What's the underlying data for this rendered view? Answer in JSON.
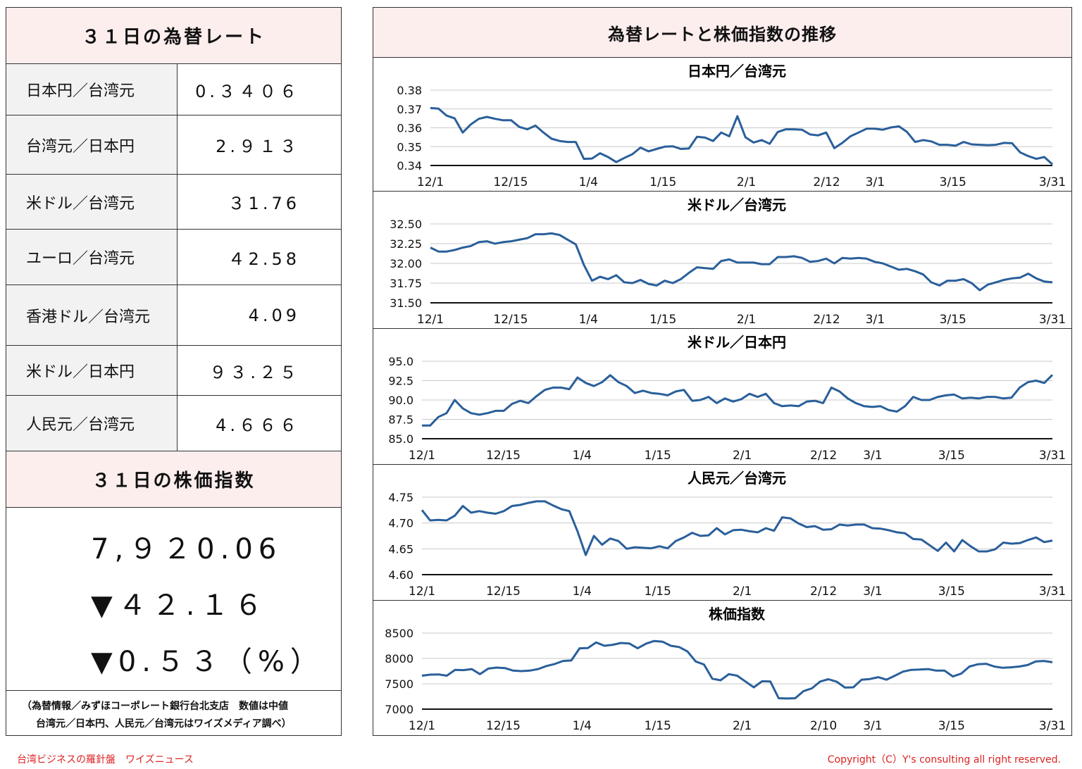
{
  "left_panel": {
    "rates_title": "３１日の為替レート",
    "rates": [
      {
        "name": "日本円／台湾元",
        "value": "0.３４０６"
      },
      {
        "name": "台湾元／日本円",
        "value": "2.９１３"
      },
      {
        "name": "米ドル／台湾元",
        "value": "３1.76"
      },
      {
        "name": "ユーロ／台湾元",
        "value": "４2.58"
      },
      {
        "name": "香港ドル／台湾元",
        "value": "4.09"
      },
      {
        "name": "米ドル／日本円",
        "value": "９３.２５"
      },
      {
        "name": "人民元／台湾元",
        "value": "4.６６６"
      }
    ],
    "stock_title": "３１日の株価指数",
    "stock_index": "7,９２0.06",
    "stock_change": "▼４２.１６",
    "stock_change_pct": "▼0.５３（%）",
    "note_line1": "（為替情報／みずほコーポレート銀行台北支店　数値は中値",
    "note_line2": "台湾元／日本円、人民元／台湾元はワイズメディア調べ）"
  },
  "right_panel": {
    "title": "為替レートと株価指数の推移"
  },
  "footer": {
    "left": "台湾ビジネスの羅針盤　ワイズニュース",
    "right": "Copyright（C）Y's consulting all right reserved."
  },
  "colors": {
    "line": "#2a5f9a",
    "header_bg": "#fdeeee",
    "name_bg": "#f2f2f2",
    "footer_text": "#dd2222"
  },
  "chart_data": [
    {
      "type": "line",
      "title": "日本円／台湾元",
      "ylim": [
        0.34,
        0.38
      ],
      "yticks": [
        "0.38",
        "0.37",
        "0.36",
        "0.35",
        "0.34"
      ],
      "xticks": [
        "12/1",
        "12/15",
        "1/4",
        "1/15",
        "2/1",
        "2/12",
        "3/1",
        "3/15",
        "3/31"
      ],
      "grid": true,
      "series": [
        {
          "values": [
            0.3705,
            0.3702,
            0.3665,
            0.365,
            0.3575,
            0.3618,
            0.3648,
            0.3658,
            0.3648,
            0.364,
            0.364,
            0.3605,
            0.3592,
            0.3612,
            0.3575,
            0.3542,
            0.353,
            0.3525,
            0.3525,
            0.3435,
            0.3437,
            0.3465,
            0.3445,
            0.3418,
            0.344,
            0.346,
            0.3495,
            0.3475,
            0.3488,
            0.35,
            0.3502,
            0.3488,
            0.349,
            0.3552,
            0.3548,
            0.353,
            0.3575,
            0.3555,
            0.3662,
            0.355,
            0.3522,
            0.3535,
            0.3515,
            0.3578,
            0.3592,
            0.3592,
            0.359,
            0.3565,
            0.356,
            0.3575,
            0.3492,
            0.352,
            0.3555,
            0.3575,
            0.3595,
            0.3595,
            0.359,
            0.3602,
            0.3608,
            0.3578,
            0.3525,
            0.3535,
            0.3528,
            0.351,
            0.351,
            0.3505,
            0.3525,
            0.3512,
            0.351,
            0.3508,
            0.351,
            0.352,
            0.3518,
            0.347,
            0.345,
            0.3435,
            0.3445,
            0.3406
          ]
        }
      ]
    },
    {
      "type": "line",
      "title": "米ドル／台湾元",
      "ylim": [
        31.5,
        32.5
      ],
      "yticks": [
        "32.50",
        "32.25",
        "32.00",
        "31.75",
        "31.50"
      ],
      "xticks": [
        "12/1",
        "12/15",
        "1/4",
        "1/15",
        "2/1",
        "2/12",
        "3/1",
        "3/15",
        "3/31"
      ],
      "grid": true,
      "series": [
        {
          "values": [
            32.2,
            32.15,
            32.15,
            32.17,
            32.2,
            32.22,
            32.27,
            32.28,
            32.25,
            32.27,
            32.28,
            32.3,
            32.32,
            32.37,
            32.37,
            32.38,
            32.36,
            32.3,
            32.24,
            31.98,
            31.78,
            31.83,
            31.8,
            31.85,
            31.76,
            31.75,
            31.79,
            31.74,
            31.72,
            31.78,
            31.75,
            31.8,
            31.88,
            31.95,
            31.94,
            31.93,
            32.03,
            32.05,
            32.01,
            32.01,
            32.01,
            31.99,
            31.99,
            32.08,
            32.08,
            32.09,
            32.07,
            32.02,
            32.03,
            32.06,
            32.0,
            32.07,
            32.06,
            32.07,
            32.06,
            32.02,
            32.0,
            31.96,
            31.92,
            31.93,
            31.9,
            31.86,
            31.76,
            31.72,
            31.78,
            31.78,
            31.8,
            31.75,
            31.66,
            31.73,
            31.76,
            31.79,
            31.81,
            31.82,
            31.87,
            31.81,
            31.77,
            31.76
          ]
        }
      ]
    },
    {
      "type": "line",
      "title": "米ドル／日本円",
      "ylim": [
        85.0,
        95.0
      ],
      "yticks": [
        "95.0",
        "92.5",
        "90.0",
        "87.5",
        "85.0"
      ],
      "xticks": [
        "12/1",
        "12/15",
        "1/4",
        "1/15",
        "2/1",
        "2/12",
        "3/1",
        "3/15",
        "3/31"
      ],
      "grid": true,
      "series": [
        {
          "values": [
            86.7,
            86.7,
            87.8,
            88.3,
            90.0,
            88.9,
            88.3,
            88.1,
            88.3,
            88.6,
            88.6,
            89.5,
            89.9,
            89.6,
            90.5,
            91.3,
            91.6,
            91.6,
            91.4,
            92.9,
            92.2,
            91.8,
            92.3,
            93.2,
            92.3,
            91.8,
            90.9,
            91.2,
            90.9,
            90.8,
            90.6,
            91.1,
            91.3,
            89.9,
            90.0,
            90.4,
            89.6,
            90.2,
            89.8,
            90.1,
            90.8,
            90.4,
            90.8,
            89.6,
            89.2,
            89.3,
            89.2,
            89.8,
            89.9,
            89.6,
            91.6,
            91.1,
            90.2,
            89.6,
            89.2,
            89.1,
            89.2,
            88.7,
            88.5,
            89.2,
            90.4,
            90.0,
            90.0,
            90.4,
            90.6,
            90.7,
            90.2,
            90.3,
            90.2,
            90.4,
            90.4,
            90.2,
            90.3,
            91.6,
            92.3,
            92.5,
            92.2,
            93.25
          ]
        }
      ]
    },
    {
      "type": "line",
      "title": "人民元／台湾元",
      "ylim": [
        4.6,
        4.75
      ],
      "yticks": [
        "4.75",
        "4.70",
        "4.65",
        "4.60"
      ],
      "xticks": [
        "12/1",
        "12/15",
        "1/4",
        "1/15",
        "2/1",
        "2/12",
        "3/1",
        "3/15",
        "3/31"
      ],
      "grid": true,
      "series": [
        {
          "values": [
            4.725,
            4.705,
            4.706,
            4.705,
            4.714,
            4.733,
            4.72,
            4.723,
            4.72,
            4.718,
            4.723,
            4.733,
            4.735,
            4.739,
            4.742,
            4.742,
            4.734,
            4.727,
            4.723,
            4.684,
            4.638,
            4.675,
            4.658,
            4.67,
            4.665,
            4.65,
            4.653,
            4.652,
            4.651,
            4.655,
            4.651,
            4.665,
            4.672,
            4.681,
            4.675,
            4.676,
            4.69,
            4.678,
            4.686,
            4.687,
            4.684,
            4.682,
            4.69,
            4.685,
            4.711,
            4.709,
            4.699,
            4.692,
            4.694,
            4.687,
            4.688,
            4.697,
            4.695,
            4.697,
            4.697,
            4.69,
            4.689,
            4.686,
            4.682,
            4.68,
            4.669,
            4.668,
            4.657,
            4.646,
            4.662,
            4.645,
            4.667,
            4.655,
            4.645,
            4.645,
            4.649,
            4.662,
            4.66,
            4.661,
            4.667,
            4.672,
            4.663,
            4.666
          ]
        }
      ]
    },
    {
      "type": "line",
      "title": "株価指数",
      "ylim": [
        7000,
        8500
      ],
      "yticks": [
        "8500",
        "8000",
        "7500",
        "7000"
      ],
      "xticks": [
        "12/1",
        "12/15",
        "1/4",
        "1/15",
        "2/1",
        "2/10",
        "3/1",
        "3/15",
        "3/31"
      ],
      "grid": true,
      "series": [
        {
          "values": [
            7660,
            7680,
            7685,
            7660,
            7775,
            7770,
            7790,
            7690,
            7800,
            7820,
            7810,
            7760,
            7750,
            7760,
            7790,
            7850,
            7890,
            7950,
            7960,
            8200,
            8205,
            8315,
            8250,
            8270,
            8305,
            8295,
            8200,
            8290,
            8345,
            8330,
            8250,
            8225,
            8140,
            7940,
            7880,
            7600,
            7570,
            7690,
            7660,
            7545,
            7430,
            7550,
            7545,
            7215,
            7210,
            7215,
            7355,
            7410,
            7545,
            7590,
            7540,
            7425,
            7430,
            7580,
            7595,
            7630,
            7580,
            7660,
            7740,
            7775,
            7780,
            7790,
            7760,
            7760,
            7645,
            7700,
            7840,
            7885,
            7895,
            7840,
            7815,
            7825,
            7840,
            7870,
            7940,
            7950,
            7925
          ]
        }
      ]
    }
  ]
}
